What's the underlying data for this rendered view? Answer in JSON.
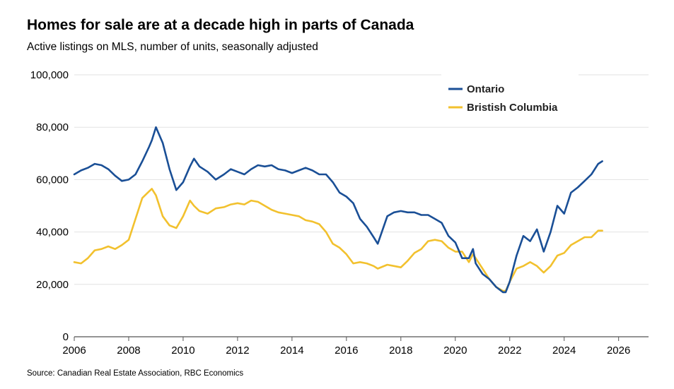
{
  "title": "Homes for sale are at a decade high in parts of Canada",
  "subtitle": "Active listings on MLS, number of units, seasonally adjusted",
  "source": "Source: Canadian Real Estate Association, RBC Economics",
  "chart_data": {
    "type": "line",
    "title": "Homes for sale are at a decade high in parts of Canada",
    "subtitle": "Active listings on MLS, number of units, seasonally adjusted",
    "xlabel": "",
    "ylabel": "",
    "xlim": [
      2006,
      2027.1
    ],
    "ylim": [
      0,
      100000
    ],
    "x_ticks": [
      2006,
      2008,
      2010,
      2012,
      2014,
      2016,
      2018,
      2020,
      2022,
      2024,
      2026
    ],
    "x_tick_labels": [
      "2006",
      "2008",
      "2010",
      "2012",
      "2014",
      "2016",
      "2018",
      "2020",
      "2022",
      "2024",
      "2026"
    ],
    "y_ticks": [
      0,
      20000,
      40000,
      60000,
      80000,
      100000
    ],
    "y_tick_labels": [
      "0",
      "20,000",
      "40,000",
      "60,000",
      "80,000",
      "100,000"
    ],
    "grid": "horizontal",
    "legend_position": "top-right",
    "series": [
      {
        "name": "Ontario",
        "color": "#1a4f96",
        "x": [
          2006.0,
          2006.25,
          2006.5,
          2006.75,
          2007.0,
          2007.25,
          2007.5,
          2007.75,
          2008.0,
          2008.25,
          2008.5,
          2008.75,
          2008.85,
          2009.0,
          2009.25,
          2009.5,
          2009.75,
          2010.0,
          2010.25,
          2010.4,
          2010.6,
          2010.9,
          2011.2,
          2011.5,
          2011.75,
          2012.0,
          2012.25,
          2012.5,
          2012.75,
          2013.0,
          2013.25,
          2013.5,
          2013.75,
          2014.0,
          2014.25,
          2014.5,
          2014.75,
          2015.0,
          2015.25,
          2015.5,
          2015.75,
          2016.0,
          2016.25,
          2016.5,
          2016.75,
          2017.0,
          2017.15,
          2017.5,
          2017.75,
          2018.0,
          2018.25,
          2018.5,
          2018.75,
          2019.0,
          2019.25,
          2019.5,
          2019.75,
          2020.0,
          2020.25,
          2020.5,
          2020.65,
          2020.75,
          2021.0,
          2021.25,
          2021.5,
          2021.75,
          2021.85,
          2022.0,
          2022.25,
          2022.5,
          2022.75,
          2023.0,
          2023.25,
          2023.5,
          2023.75,
          2024.0,
          2024.25,
          2024.5,
          2024.75,
          2025.0,
          2025.25,
          2025.4
        ],
        "values": [
          62000,
          63500,
          64500,
          66000,
          65500,
          64000,
          61500,
          59500,
          60000,
          62000,
          67000,
          72500,
          75000,
          80000,
          74000,
          64000,
          56000,
          59000,
          65000,
          68000,
          65000,
          63000,
          60000,
          62000,
          64000,
          63000,
          62000,
          64000,
          65500,
          65000,
          65500,
          64000,
          63500,
          62500,
          63500,
          64500,
          63500,
          62000,
          62000,
          59000,
          55000,
          53500,
          51000,
          45000,
          42000,
          38000,
          35500,
          46000,
          47500,
          48000,
          47500,
          47500,
          46500,
          46500,
          45000,
          43500,
          38500,
          36000,
          30000,
          30000,
          33500,
          28000,
          24000,
          22000,
          19000,
          17000,
          17000,
          21000,
          31000,
          38500,
          36500,
          41000,
          32500,
          40000,
          50000,
          47000,
          55000,
          57000,
          59500,
          62000,
          66000,
          67000
        ]
      },
      {
        "name": "Bristish Columbia",
        "color": "#f2c12e",
        "x": [
          2006.0,
          2006.25,
          2006.5,
          2006.75,
          2007.0,
          2007.25,
          2007.5,
          2007.75,
          2008.0,
          2008.25,
          2008.5,
          2008.75,
          2008.85,
          2009.0,
          2009.25,
          2009.5,
          2009.75,
          2010.0,
          2010.25,
          2010.4,
          2010.6,
          2010.9,
          2011.2,
          2011.5,
          2011.75,
          2012.0,
          2012.25,
          2012.5,
          2012.75,
          2013.0,
          2013.25,
          2013.5,
          2013.75,
          2014.0,
          2014.25,
          2014.5,
          2014.75,
          2015.0,
          2015.25,
          2015.5,
          2015.75,
          2016.0,
          2016.25,
          2016.5,
          2016.75,
          2017.0,
          2017.15,
          2017.5,
          2017.75,
          2018.0,
          2018.25,
          2018.5,
          2018.75,
          2019.0,
          2019.25,
          2019.5,
          2019.75,
          2020.0,
          2020.25,
          2020.5,
          2020.65,
          2020.75,
          2021.0,
          2021.25,
          2021.5,
          2021.75,
          2021.85,
          2022.0,
          2022.25,
          2022.5,
          2022.75,
          2023.0,
          2023.25,
          2023.5,
          2023.75,
          2024.0,
          2024.25,
          2024.5,
          2024.75,
          2025.0,
          2025.25,
          2025.4
        ],
        "values": [
          28500,
          28000,
          30000,
          33000,
          33500,
          34500,
          33500,
          35000,
          37000,
          45000,
          53000,
          55500,
          56500,
          54000,
          46000,
          42500,
          41500,
          46000,
          52000,
          50000,
          48000,
          47000,
          49000,
          49500,
          50500,
          51000,
          50500,
          52000,
          51500,
          50000,
          48500,
          47500,
          47000,
          46500,
          46000,
          44500,
          44000,
          43000,
          40000,
          35500,
          34000,
          31500,
          28000,
          28500,
          28000,
          27000,
          26000,
          27500,
          27000,
          26500,
          29000,
          32000,
          33500,
          36500,
          37000,
          36500,
          34000,
          32500,
          32500,
          28500,
          31500,
          30000,
          26000,
          22000,
          19000,
          17500,
          17500,
          21000,
          26000,
          27000,
          28500,
          27000,
          24500,
          27000,
          31000,
          32000,
          35000,
          36500,
          38000,
          38000,
          40500,
          40500
        ]
      }
    ]
  }
}
